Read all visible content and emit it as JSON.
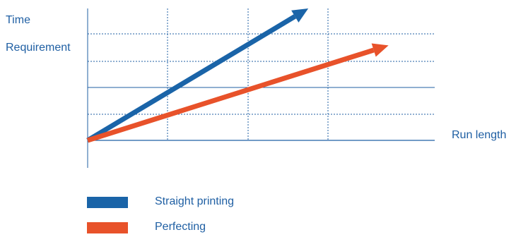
{
  "chart_data": {
    "type": "line",
    "title": "",
    "ylabel_lines": [
      "Time",
      "Requirement"
    ],
    "xlabel": "Run length",
    "axis_numbers_shown": false,
    "grid": true,
    "legend_position": "bottom-left",
    "series": [
      {
        "name": "Straight printing",
        "color": "#1a64a8",
        "x": [
          0,
          2.75
        ],
        "y": [
          0,
          5
        ]
      },
      {
        "name": "Perfecting",
        "color": "#e8522a",
        "x": [
          0,
          3.75
        ],
        "y": [
          0,
          3.6
        ]
      }
    ],
    "xlim": [
      0,
      4
    ],
    "ylim": [
      0,
      5
    ]
  }
}
